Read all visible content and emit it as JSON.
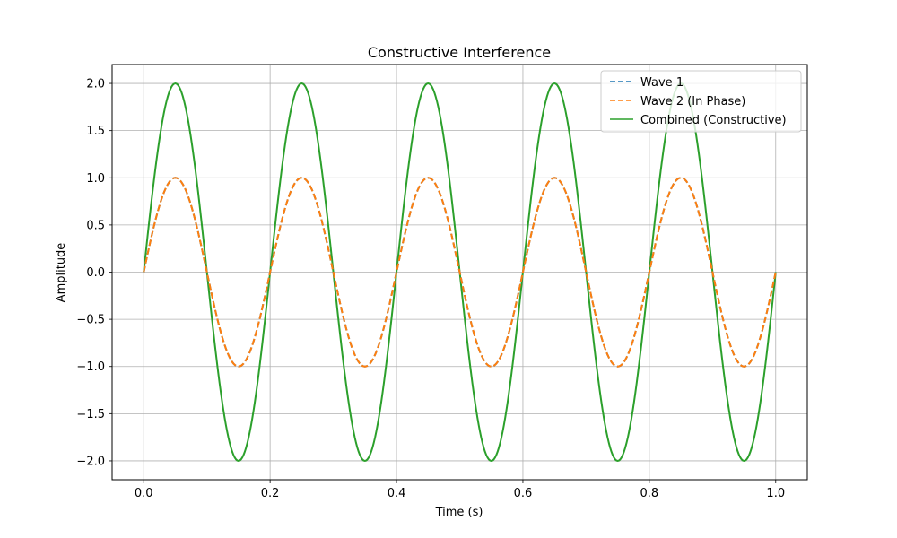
{
  "chart_data": {
    "type": "line",
    "title": "Constructive Interference",
    "xlabel": "Time (s)",
    "ylabel": "Amplitude",
    "xlim": [
      -0.05,
      1.05
    ],
    "ylim": [
      -2.2,
      2.2
    ],
    "xticks": [
      0.0,
      0.2,
      0.4,
      0.6,
      0.8,
      1.0
    ],
    "xtick_labels": [
      "0.0",
      "0.2",
      "0.4",
      "0.6",
      "0.8",
      "1.0"
    ],
    "yticks": [
      -2.0,
      -1.5,
      -1.0,
      -0.5,
      0.0,
      0.5,
      1.0,
      1.5,
      2.0
    ],
    "ytick_labels": [
      "−2.0",
      "−1.5",
      "−1.0",
      "−0.5",
      "0.0",
      "0.5",
      "1.0",
      "1.5",
      "2.0"
    ],
    "grid": true,
    "legend_position": "top-right",
    "series": [
      {
        "name": "Wave 1",
        "color": "#1f77b4",
        "style": "dashed",
        "amplitude": 1.0,
        "frequency_hz": 5,
        "phase": 0,
        "x_range": [
          0.0,
          1.0
        ]
      },
      {
        "name": "Wave 2 (In Phase)",
        "color": "#ff7f0e",
        "style": "dashed",
        "amplitude": 1.0,
        "frequency_hz": 5,
        "phase": 0,
        "x_range": [
          0.0,
          1.0
        ]
      },
      {
        "name": "Combined (Constructive)",
        "color": "#2ca02c",
        "style": "solid",
        "amplitude": 2.0,
        "frequency_hz": 5,
        "phase": 0,
        "x_range": [
          0.0,
          1.0
        ]
      }
    ]
  }
}
